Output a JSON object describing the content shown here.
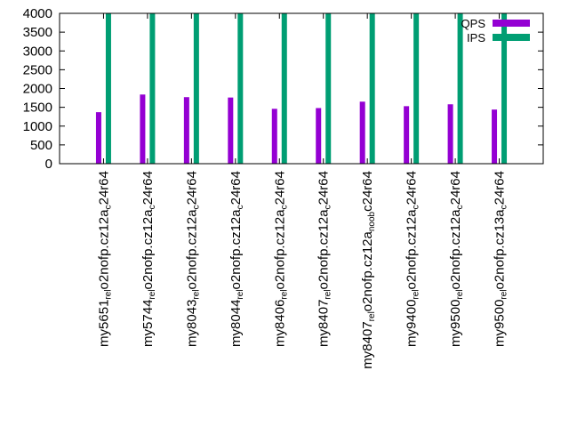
{
  "chart_data": {
    "type": "bar",
    "title": "",
    "xlabel": "",
    "ylabel": "",
    "ylim": [
      0,
      4000
    ],
    "yticks": [
      0,
      500,
      1000,
      1500,
      2000,
      2500,
      3000,
      3500,
      4000
    ],
    "legend_position": "top-right",
    "categories": [
      "my5651_rel_o2nofp.cz12a_c24r64",
      "my5744_rel_o2nofp.cz12a_c24r64",
      "my8043_rel_o2nofp.cz12a_c24r64",
      "my8044_rel_o2nofp.cz12a_c24r64",
      "my8406_rel_o2nofp.cz12a_c24r64",
      "my8407_rel_o2nofp.cz12a_c24r64",
      "my8407_rel_o2nofp.cz12a_noob_c24r64",
      "my9400_rel_o2nofp.cz12a_c24r64",
      "my9500_rel_o2nofp.cz12a_c24r64",
      "my9500_rel_o2nofp.cz13a_c24r64"
    ],
    "category_labels": [
      {
        "parts": [
          {
            "t": "my5651",
            "sub": false
          },
          {
            "t": "rel",
            "sub": true
          },
          {
            "t": "o2nofp.cz12a",
            "sub": false
          },
          {
            "t": "c",
            "sub": true
          },
          {
            "t": "24r64",
            "sub": false
          }
        ]
      },
      {
        "parts": [
          {
            "t": "my5744",
            "sub": false
          },
          {
            "t": "rel",
            "sub": true
          },
          {
            "t": "o2nofp.cz12a",
            "sub": false
          },
          {
            "t": "c",
            "sub": true
          },
          {
            "t": "24r64",
            "sub": false
          }
        ]
      },
      {
        "parts": [
          {
            "t": "my8043",
            "sub": false
          },
          {
            "t": "rel",
            "sub": true
          },
          {
            "t": "o2nofp.cz12a",
            "sub": false
          },
          {
            "t": "c",
            "sub": true
          },
          {
            "t": "24r64",
            "sub": false
          }
        ]
      },
      {
        "parts": [
          {
            "t": "my8044",
            "sub": false
          },
          {
            "t": "rel",
            "sub": true
          },
          {
            "t": "o2nofp.cz12a",
            "sub": false
          },
          {
            "t": "c",
            "sub": true
          },
          {
            "t": "24r64",
            "sub": false
          }
        ]
      },
      {
        "parts": [
          {
            "t": "my8406",
            "sub": false
          },
          {
            "t": "rel",
            "sub": true
          },
          {
            "t": "o2nofp.cz12a",
            "sub": false
          },
          {
            "t": "c",
            "sub": true
          },
          {
            "t": "24r64",
            "sub": false
          }
        ]
      },
      {
        "parts": [
          {
            "t": "my8407",
            "sub": false
          },
          {
            "t": "rel",
            "sub": true
          },
          {
            "t": "o2nofp.cz12a",
            "sub": false
          },
          {
            "t": "c",
            "sub": true
          },
          {
            "t": "24r64",
            "sub": false
          }
        ]
      },
      {
        "parts": [
          {
            "t": "my8407",
            "sub": false
          },
          {
            "t": "rel",
            "sub": true
          },
          {
            "t": "o2nofp.cz12a",
            "sub": false
          },
          {
            "t": "noob",
            "sub": true
          },
          {
            "t": "c24r64",
            "sub": false
          }
        ]
      },
      {
        "parts": [
          {
            "t": "my9400",
            "sub": false
          },
          {
            "t": "rel",
            "sub": true
          },
          {
            "t": "o2nofp.cz12a",
            "sub": false
          },
          {
            "t": "c",
            "sub": true
          },
          {
            "t": "24r64",
            "sub": false
          }
        ]
      },
      {
        "parts": [
          {
            "t": "my9500",
            "sub": false
          },
          {
            "t": "rel",
            "sub": true
          },
          {
            "t": "o2nofp.cz12a",
            "sub": false
          },
          {
            "t": "c",
            "sub": true
          },
          {
            "t": "24r64",
            "sub": false
          }
        ]
      },
      {
        "parts": [
          {
            "t": "my9500",
            "sub": false
          },
          {
            "t": "rel",
            "sub": true
          },
          {
            "t": "o2nofp.cz13a",
            "sub": false
          },
          {
            "t": "c",
            "sub": true
          },
          {
            "t": "24r64",
            "sub": false
          }
        ]
      }
    ],
    "series": [
      {
        "name": "QPS",
        "color": "#9400d3",
        "values": [
          1370,
          1840,
          1770,
          1760,
          1460,
          1480,
          1650,
          1530,
          1580,
          1440
        ]
      },
      {
        "name": "IPS",
        "color": "#009e73",
        "values": [
          4000,
          4000,
          4000,
          4000,
          4000,
          4000,
          4000,
          4000,
          4000,
          4000
        ]
      }
    ]
  }
}
